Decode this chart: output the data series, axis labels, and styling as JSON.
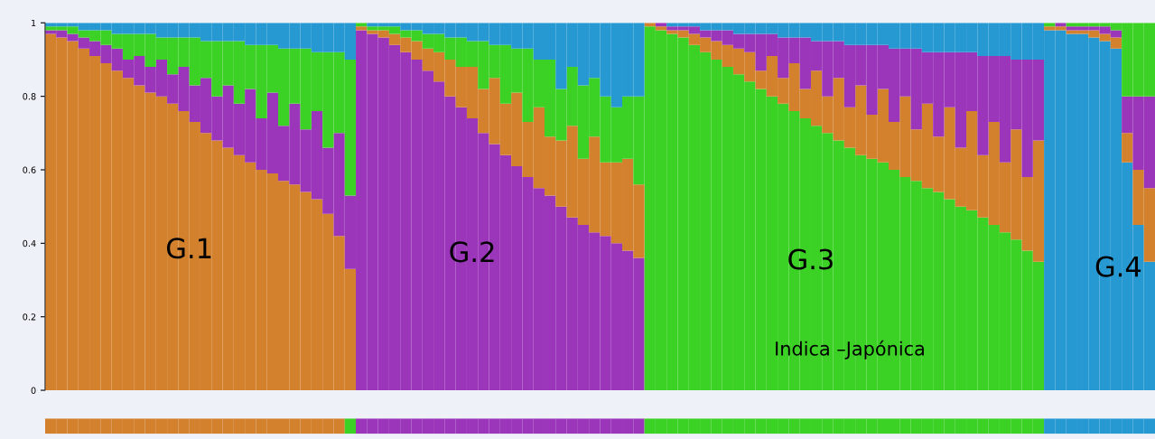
{
  "chart_data": {
    "type": "bar",
    "stacked": true,
    "tick_labels": "y",
    "categories": [
      null,
      null,
      null,
      null,
      null,
      null,
      null,
      null,
      null,
      null,
      null,
      null,
      null,
      null,
      null,
      null,
      null,
      null,
      null,
      null,
      null,
      null,
      null,
      null,
      null,
      null,
      null,
      null,
      null,
      null,
      null,
      null,
      null,
      null,
      null,
      null,
      null,
      null,
      null,
      null,
      null,
      null,
      null,
      null,
      null,
      null,
      null,
      null,
      null,
      null,
      null,
      null,
      null,
      null,
      null,
      null,
      null,
      null,
      null,
      null,
      null,
      null,
      null,
      null,
      null,
      null,
      null,
      null,
      null,
      null,
      null,
      null,
      null,
      null,
      null,
      null,
      null,
      null,
      null,
      null,
      null,
      null,
      null,
      null,
      null,
      null,
      null,
      null,
      null,
      null,
      null,
      null,
      null,
      null,
      null,
      null,
      null,
      null,
      null,
      null
    ],
    "ylim": [
      0,
      1
    ],
    "yticks": [
      0,
      {
        "value": 0.2,
        "label": "0.2"
      },
      {
        "value": 0.4,
        "label": "0.4"
      },
      {
        "value": 0.6,
        "label": "0.6"
      },
      {
        "value": 0.8,
        "label": "0.8"
      },
      1
    ],
    "series": [
      {
        "color": "#d4812e",
        "values": [
          0.97,
          0.96,
          0.95,
          0.93,
          0.91,
          0.89,
          0.87,
          0.85,
          0.83,
          0.81,
          0.8,
          0.78,
          0.76,
          0.73,
          0.7,
          0.68,
          0.66,
          0.64,
          0.62,
          0.6,
          0.59,
          0.57,
          0.56,
          0.54,
          0.52,
          0.48,
          0.42,
          0.33,
          null,
          null,
          null,
          null,
          null,
          null,
          null,
          null,
          null,
          null,
          null,
          null,
          null,
          null,
          null,
          null,
          null,
          null,
          null,
          null,
          null,
          null,
          null,
          null,
          null,
          null,
          null,
          null,
          null,
          null,
          null,
          null,
          null,
          null,
          null,
          null,
          null,
          null,
          null,
          null,
          null,
          null,
          null,
          null,
          null,
          null,
          null,
          null,
          null,
          null,
          null,
          null,
          null,
          null,
          null,
          null,
          null,
          null,
          null,
          null,
          null,
          null,
          null,
          null,
          null,
          null,
          null,
          null,
          null,
          null,
          null,
          null
        ]
      },
      {
        "color": "#9b35b9",
        "values": [
          null,
          null,
          null,
          null,
          null,
          null,
          null,
          null,
          null,
          null,
          null,
          null,
          null,
          null,
          null,
          null,
          null,
          null,
          null,
          null,
          null,
          null,
          null,
          null,
          null,
          null,
          null,
          null,
          0.98,
          0.97,
          0.96,
          0.94,
          0.92,
          0.9,
          0.87,
          0.84,
          0.8,
          0.77,
          0.74,
          0.7,
          0.67,
          0.64,
          0.61,
          0.58,
          0.55,
          0.53,
          0.5,
          0.47,
          0.45,
          0.43,
          0.42,
          0.4,
          0.38,
          0.36,
          null,
          null,
          null,
          null,
          null,
          null,
          null,
          null,
          null,
          null,
          null,
          null,
          null,
          null,
          null,
          null,
          null,
          null,
          null,
          null,
          null,
          null,
          null,
          null,
          null,
          null,
          null,
          null,
          null,
          null,
          null,
          null,
          null,
          null,
          null,
          null,
          null,
          null,
          null,
          null,
          null,
          null,
          null,
          null,
          null,
          null
        ]
      },
      {
        "color": "#3bd225",
        "values": [
          null,
          null,
          null,
          null,
          null,
          null,
          null,
          null,
          null,
          null,
          null,
          null,
          null,
          null,
          null,
          null,
          null,
          null,
          null,
          null,
          null,
          null,
          null,
          null,
          null,
          null,
          null,
          null,
          null,
          null,
          null,
          null,
          null,
          null,
          null,
          null,
          null,
          null,
          null,
          null,
          null,
          null,
          null,
          null,
          null,
          null,
          null,
          null,
          null,
          null,
          null,
          null,
          null,
          null,
          0.99,
          0.98,
          0.97,
          0.96,
          0.94,
          0.92,
          0.9,
          0.88,
          0.86,
          0.84,
          0.82,
          0.8,
          0.78,
          0.76,
          0.74,
          0.72,
          0.7,
          0.68,
          0.66,
          0.64,
          0.63,
          0.62,
          0.6,
          0.58,
          0.57,
          0.55,
          0.54,
          0.52,
          0.5,
          0.49,
          0.47,
          0.45,
          0.43,
          0.41,
          0.38,
          0.35,
          null,
          null,
          null,
          null,
          null,
          null,
          null,
          null,
          null,
          null
        ]
      },
      {
        "color": "#2699d2",
        "values": [
          null,
          null,
          null,
          null,
          null,
          null,
          null,
          null,
          null,
          null,
          null,
          null,
          null,
          null,
          null,
          null,
          null,
          null,
          null,
          null,
          null,
          null,
          null,
          null,
          null,
          null,
          null,
          null,
          null,
          null,
          null,
          null,
          null,
          null,
          null,
          null,
          null,
          null,
          null,
          null,
          null,
          null,
          null,
          null,
          null,
          null,
          null,
          null,
          null,
          null,
          null,
          null,
          null,
          null,
          null,
          null,
          null,
          null,
          null,
          null,
          null,
          null,
          null,
          null,
          null,
          null,
          null,
          null,
          null,
          null,
          null,
          null,
          null,
          null,
          null,
          null,
          null,
          null,
          null,
          null,
          null,
          null,
          null,
          null,
          null,
          null,
          null,
          null,
          null,
          null,
          0.98,
          0.98,
          0.97,
          0.97,
          0.96,
          0.95,
          0.93,
          0.62,
          0.45,
          0.35
        ]
      },
      {
        "color": "#d4812e",
        "values": [
          null,
          null,
          null,
          null,
          null,
          null,
          null,
          null,
          null,
          null,
          null,
          null,
          null,
          null,
          null,
          null,
          null,
          null,
          null,
          null,
          null,
          null,
          null,
          null,
          null,
          null,
          null,
          null,
          0.01,
          0.01,
          0.02,
          0.03,
          0.04,
          0.05,
          0.06,
          0.08,
          0.1,
          0.11,
          0.14,
          0.12,
          0.18,
          0.14,
          0.2,
          0.15,
          0.22,
          0.16,
          0.18,
          0.25,
          0.18,
          0.26,
          0.2,
          0.22,
          0.25,
          0.2,
          0.01,
          0.01,
          0.01,
          0.02,
          0.03,
          0.04,
          0.05,
          0.06,
          0.07,
          0.08,
          0.05,
          0.11,
          0.07,
          0.13,
          0.08,
          0.15,
          0.1,
          0.17,
          0.11,
          0.19,
          0.12,
          0.2,
          0.13,
          0.22,
          0.14,
          0.23,
          0.15,
          0.25,
          0.16,
          0.27,
          0.17,
          0.28,
          0.19,
          0.3,
          0.2,
          0.33,
          0.01,
          0.01,
          0.01,
          0.01,
          0.02,
          0.02,
          0.03,
          0.08,
          0.15,
          0.2
        ]
      },
      {
        "color": "#9b35b9",
        "values": [
          0.01,
          0.02,
          0.02,
          0.03,
          0.04,
          0.05,
          0.06,
          0.05,
          0.08,
          0.07,
          0.1,
          0.08,
          0.12,
          0.1,
          0.15,
          0.12,
          0.17,
          0.14,
          0.2,
          0.14,
          0.22,
          0.15,
          0.22,
          0.17,
          0.24,
          0.18,
          0.28,
          0.2,
          null,
          null,
          null,
          null,
          null,
          null,
          null,
          null,
          null,
          null,
          null,
          null,
          null,
          null,
          null,
          null,
          null,
          null,
          null,
          null,
          null,
          null,
          null,
          null,
          null,
          null,
          0.0,
          0.01,
          0.01,
          0.01,
          0.02,
          0.02,
          0.03,
          0.04,
          0.04,
          0.05,
          0.1,
          0.06,
          0.11,
          0.07,
          0.14,
          0.08,
          0.15,
          0.1,
          0.17,
          0.11,
          0.19,
          0.12,
          0.2,
          0.13,
          0.22,
          0.14,
          0.23,
          0.15,
          0.26,
          0.16,
          0.27,
          0.18,
          0.29,
          0.19,
          0.32,
          0.22,
          0.0,
          0.01,
          0.01,
          0.01,
          0.01,
          0.02,
          0.02,
          0.1,
          0.2,
          0.25
        ]
      },
      {
        "color": "#3bd225",
        "values": [
          0.01,
          0.01,
          0.02,
          0.02,
          0.03,
          0.04,
          0.04,
          0.07,
          0.06,
          0.09,
          0.06,
          0.1,
          0.08,
          0.13,
          0.1,
          0.15,
          0.12,
          0.17,
          0.12,
          0.2,
          0.13,
          0.21,
          0.15,
          0.22,
          0.16,
          0.26,
          0.22,
          0.37,
          0.01,
          0.01,
          0.01,
          0.02,
          0.02,
          0.03,
          0.04,
          0.05,
          0.06,
          0.08,
          0.07,
          0.13,
          0.09,
          0.16,
          0.12,
          0.2,
          0.13,
          0.21,
          0.14,
          0.16,
          0.2,
          0.16,
          0.18,
          0.15,
          0.17,
          0.24,
          null,
          null,
          null,
          null,
          null,
          null,
          null,
          null,
          null,
          null,
          null,
          null,
          null,
          null,
          null,
          null,
          null,
          null,
          null,
          null,
          null,
          null,
          null,
          null,
          null,
          null,
          null,
          null,
          null,
          null,
          null,
          null,
          null,
          null,
          null,
          null,
          0.01,
          0.0,
          0.01,
          0.01,
          0.01,
          0.01,
          0.02,
          0.2,
          0.2,
          0.2
        ]
      },
      {
        "color": "#2699d2",
        "values": [
          0.01,
          0.01,
          0.01,
          0.02,
          0.02,
          0.02,
          0.03,
          0.03,
          0.03,
          0.03,
          0.04,
          0.04,
          0.04,
          0.04,
          0.05,
          0.05,
          0.05,
          0.05,
          0.06,
          0.06,
          0.06,
          0.07,
          0.07,
          0.07,
          0.08,
          0.08,
          0.08,
          0.1,
          0.0,
          0.01,
          0.01,
          0.01,
          0.02,
          0.02,
          0.03,
          0.03,
          0.04,
          0.04,
          0.05,
          0.05,
          0.06,
          0.06,
          0.07,
          0.07,
          0.1,
          0.1,
          0.18,
          0.12,
          0.17,
          0.15,
          0.2,
          0.23,
          0.2,
          0.2,
          0.0,
          0.0,
          0.01,
          0.01,
          0.01,
          0.02,
          0.02,
          0.02,
          0.03,
          0.03,
          0.03,
          0.03,
          0.04,
          0.04,
          0.04,
          0.05,
          0.05,
          0.05,
          0.06,
          0.06,
          0.06,
          0.06,
          0.07,
          0.07,
          0.07,
          0.08,
          0.08,
          0.08,
          0.08,
          0.08,
          0.09,
          0.09,
          0.09,
          0.1,
          0.1,
          0.1,
          null,
          null,
          null,
          null,
          null,
          null,
          null,
          null,
          null,
          null
        ]
      }
    ],
    "annotations": [
      "G.1",
      "G.2",
      "G.3",
      "G.4",
      "Indica –Japónica"
    ]
  }
}
